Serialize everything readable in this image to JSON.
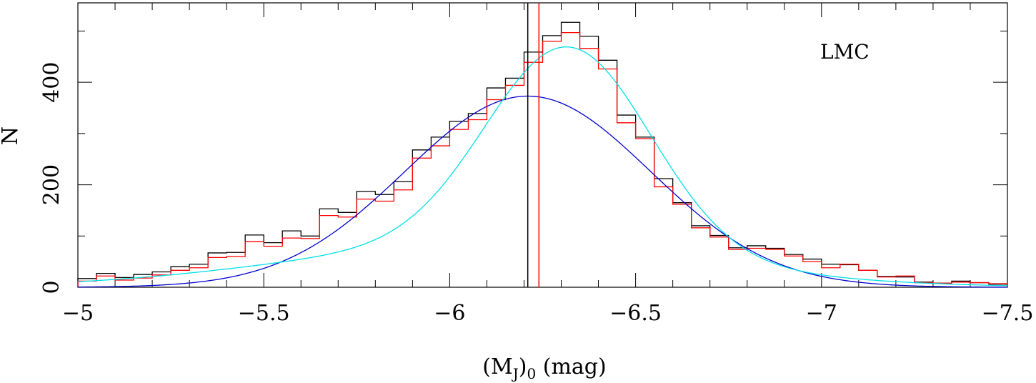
{
  "chart_data": {
    "type": "histogram",
    "annotation": "LMC",
    "xlabel": {
      "prefix": "(M",
      "sub1": "J",
      "mid": ")",
      "sub2": "0",
      "suffix": " (mag)"
    },
    "ylabel": "N",
    "xlim": [
      -5,
      -7.5
    ],
    "ylim": [
      0,
      555
    ],
    "xticks_major": [
      -5,
      -5.5,
      -6,
      -6.5,
      -7,
      -7.5
    ],
    "xtick_labels": [
      "−5",
      "−5.5",
      "−6",
      "−6.5",
      "−7",
      "−7.5"
    ],
    "yticks_major": [
      0,
      200,
      400
    ],
    "ytick_labels": [
      "0",
      "200",
      "400"
    ],
    "bin_edges": [
      -5.0,
      -5.05,
      -5.1,
      -5.15,
      -5.2,
      -5.25,
      -5.3,
      -5.35,
      -5.4,
      -5.45,
      -5.5,
      -5.55,
      -5.6,
      -5.65,
      -5.7,
      -5.75,
      -5.8,
      -5.85,
      -5.9,
      -5.95,
      -6.0,
      -6.05,
      -6.1,
      -6.15,
      -6.2,
      -6.25,
      -6.3,
      -6.35,
      -6.4,
      -6.45,
      -6.5,
      -6.55,
      -6.6,
      -6.65,
      -6.7,
      -6.75,
      -6.8,
      -6.85,
      -6.9,
      -6.95,
      -7.0,
      -7.05,
      -7.1,
      -7.15,
      -7.2,
      -7.25,
      -7.3,
      -7.35,
      -7.4,
      -7.45,
      -7.5
    ],
    "series": [
      {
        "color": "#000000",
        "counts": [
          17,
          27,
          19,
          25,
          30,
          40,
          45,
          67,
          68,
          102,
          87,
          110,
          100,
          153,
          146,
          187,
          181,
          206,
          268,
          293,
          324,
          339,
          389,
          408,
          459,
          491,
          517,
          490,
          443,
          336,
          293,
          212,
          165,
          120,
          101,
          77,
          81,
          76,
          64,
          55,
          45,
          44,
          33,
          21,
          20,
          10,
          8,
          12,
          9,
          6
        ]
      },
      {
        "color": "#ff0000",
        "counts": [
          12,
          22,
          14,
          18,
          24,
          33,
          38,
          58,
          60,
          89,
          80,
          96,
          95,
          140,
          137,
          172,
          168,
          190,
          252,
          276,
          308,
          327,
          366,
          394,
          439,
          480,
          497,
          466,
          426,
          321,
          290,
          196,
          162,
          116,
          98,
          74,
          76,
          74,
          61,
          50,
          38,
          45,
          33,
          20,
          22,
          9,
          8,
          10,
          9,
          7
        ]
      }
    ],
    "vlines": [
      {
        "x": -6.21,
        "color": "#000000"
      },
      {
        "x": -6.24,
        "color": "#ff0000"
      }
    ],
    "fits": [
      {
        "color": "#0000d0",
        "type": "gaussian",
        "amplitude": 373,
        "mean": -6.21,
        "sigma": 0.33,
        "offset": 0
      },
      {
        "color": "#00e0e8",
        "type": "gaussian_plus_background",
        "amplitude": 395,
        "mean": -6.32,
        "sigma": 0.22,
        "background": {
          "amplitude": 80,
          "mean": -6.1,
          "sigma": 0.55
        }
      }
    ]
  }
}
